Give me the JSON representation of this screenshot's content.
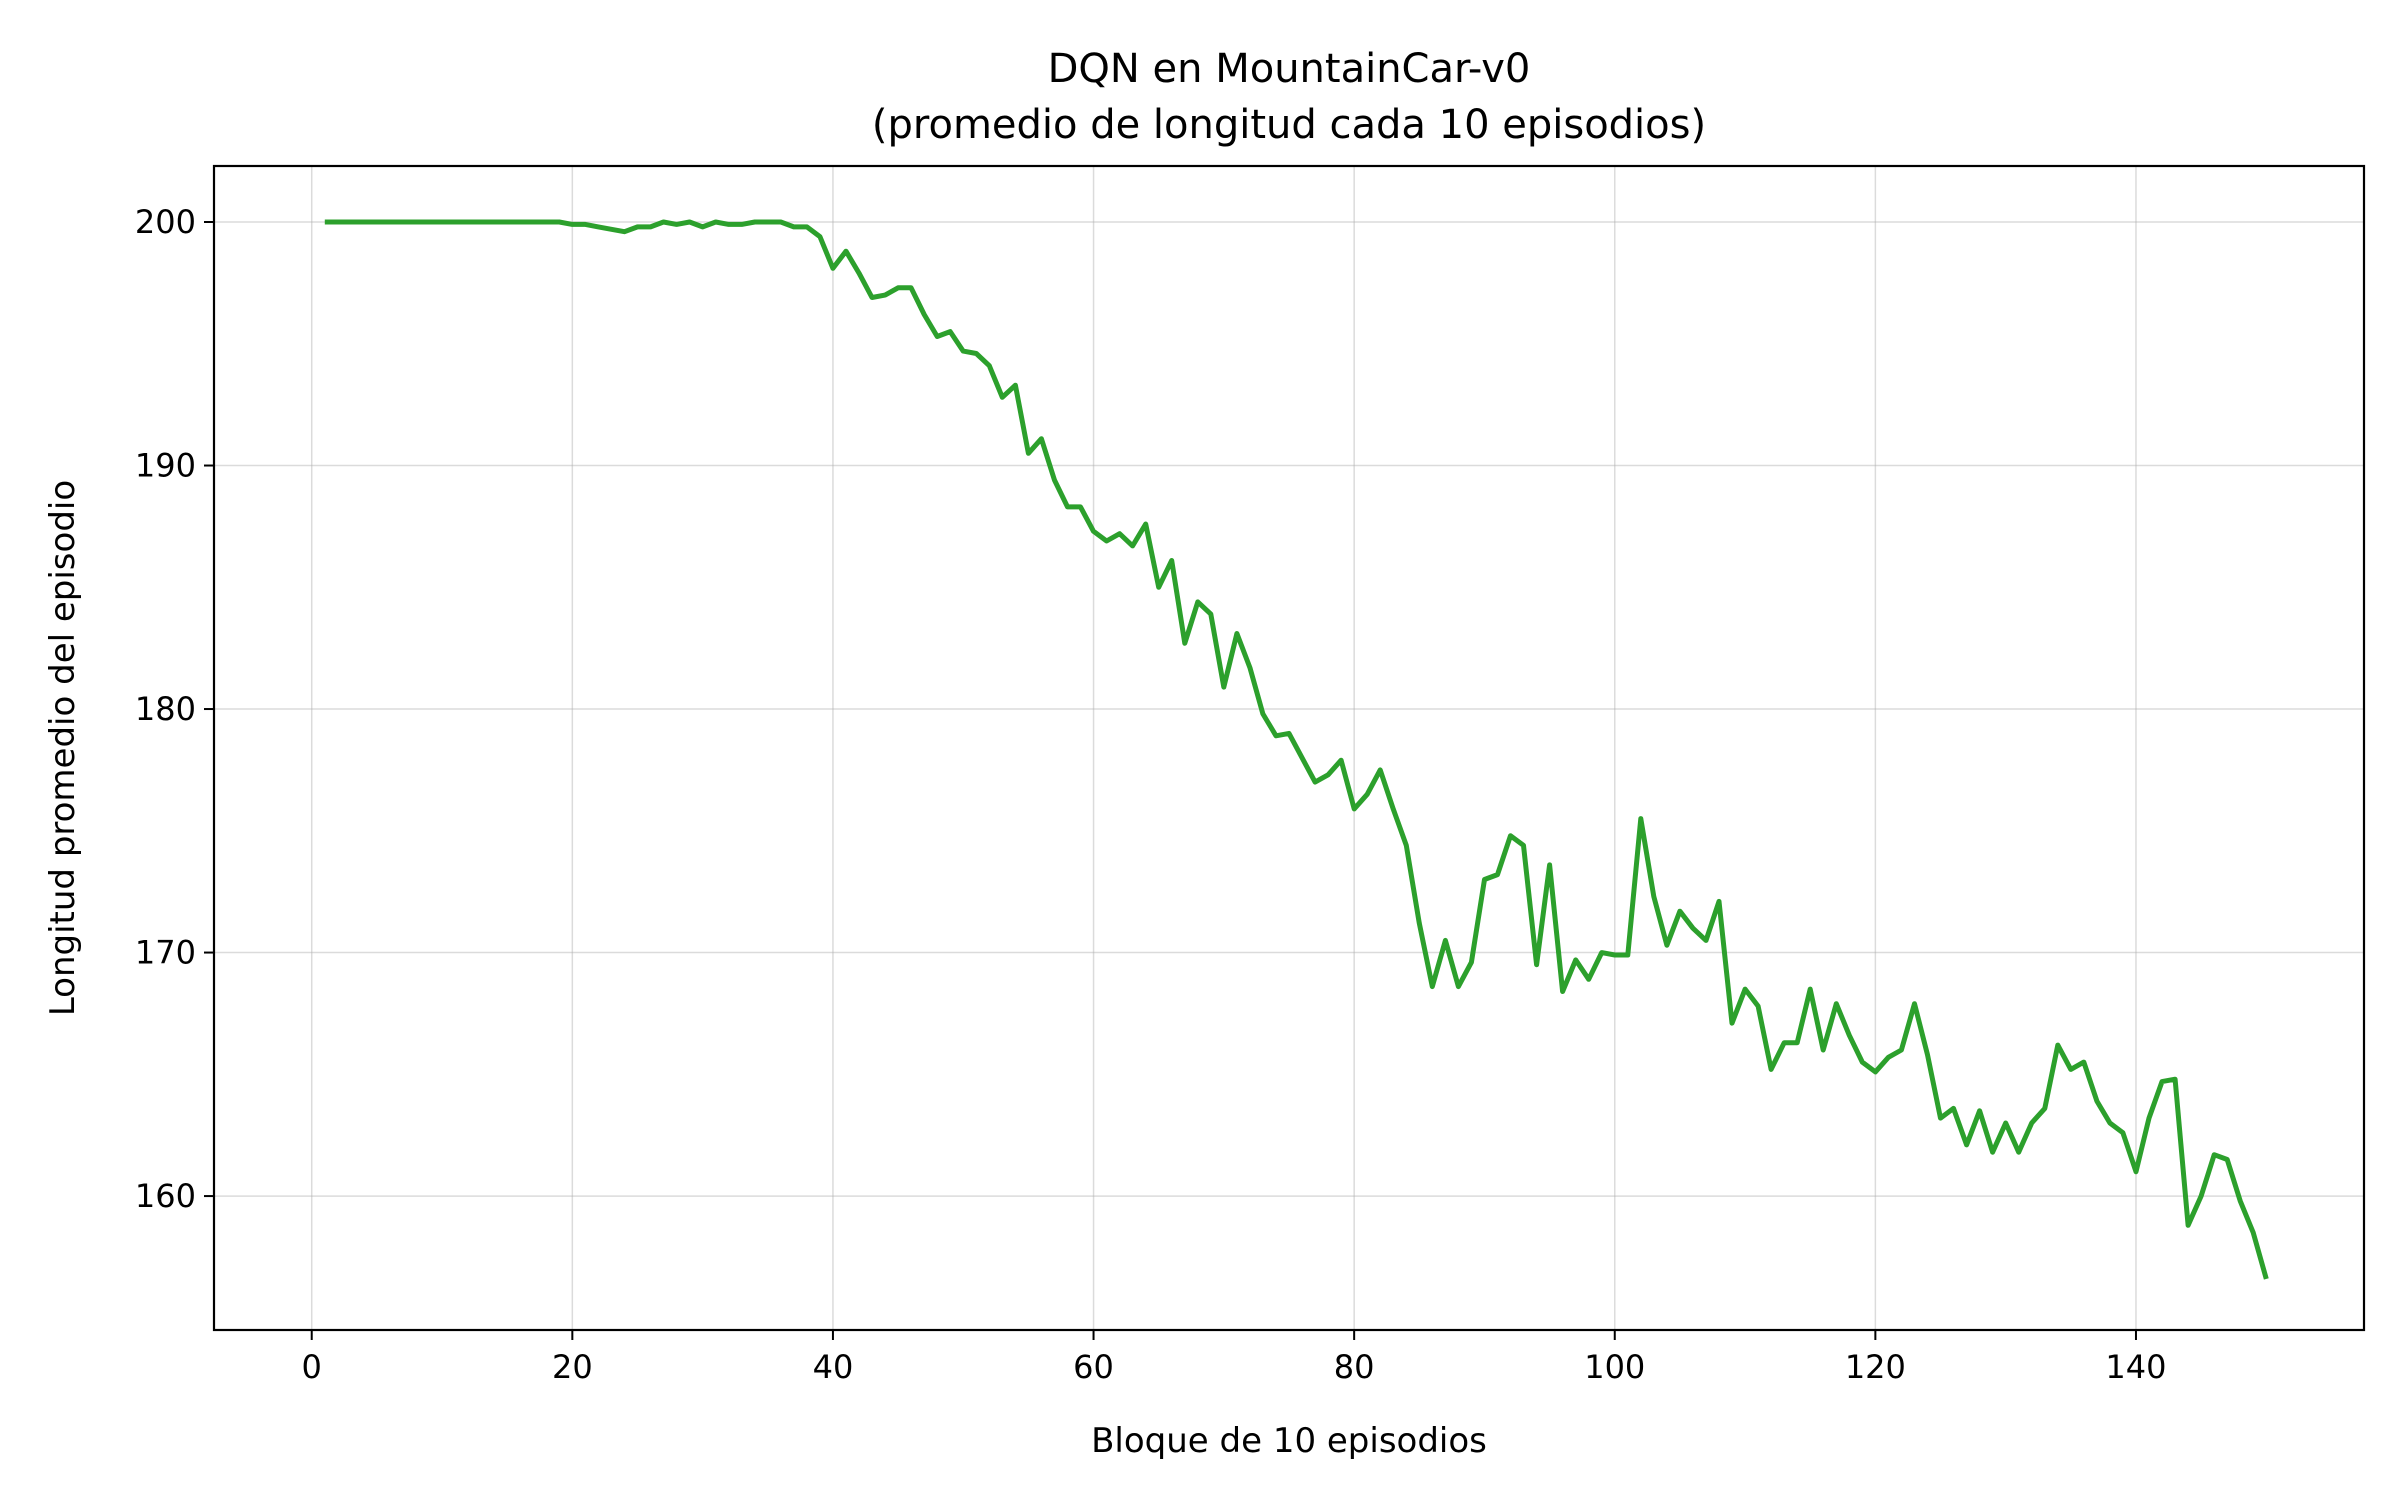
{
  "chart_data": {
    "type": "line",
    "title_line1": "DQN en MountainCar-v0",
    "title_line2": "(promedio de longitud cada 10 episodios)",
    "xlabel": "Bloque de 10 episodios",
    "ylabel": "Longitud promedio del episodio",
    "xlim": [
      -7.5,
      157.5
    ],
    "ylim": [
      154.5,
      202.3
    ],
    "xticks": [
      0,
      20,
      40,
      60,
      80,
      100,
      120,
      140
    ],
    "yticks": [
      160,
      170,
      180,
      190,
      200
    ],
    "grid": true,
    "line_color": "#2ca02c",
    "series": [
      {
        "x": [
          1,
          2,
          3,
          4,
          5,
          6,
          7,
          8,
          9,
          10,
          11,
          12,
          13,
          14,
          15,
          16,
          17,
          18,
          19,
          20,
          21,
          22,
          23,
          24,
          25,
          26,
          27,
          28,
          29,
          30,
          31,
          32,
          33,
          34,
          35,
          36,
          37,
          38,
          39,
          40,
          41,
          42,
          43,
          44,
          45,
          46,
          47,
          48,
          49,
          50,
          51,
          52,
          53,
          54,
          55,
          56,
          57,
          58,
          59,
          60,
          61,
          62,
          63,
          64,
          65,
          66,
          67,
          68,
          69,
          70,
          71,
          72,
          73,
          74,
          75,
          76,
          77,
          78,
          79,
          80,
          81,
          82,
          83,
          84,
          85,
          86,
          87,
          88,
          89,
          90,
          91,
          92,
          93,
          94,
          95,
          96,
          97,
          98,
          99,
          100,
          101,
          102,
          103,
          104,
          105,
          106,
          107,
          108,
          109,
          110,
          111,
          112,
          113,
          114,
          115,
          116,
          117,
          118,
          119,
          120,
          121,
          122,
          123,
          124,
          125,
          126,
          127,
          128,
          129,
          130,
          131,
          132,
          133,
          134,
          135,
          136,
          137,
          138,
          139,
          140,
          141,
          142,
          143,
          144,
          145,
          146,
          147,
          148,
          149,
          150
        ],
        "values": [
          200,
          200,
          200,
          200,
          200,
          200,
          200,
          200,
          200,
          200,
          200,
          200,
          200,
          200,
          200,
          200,
          200,
          200,
          200,
          199.9,
          199.9,
          199.8,
          199.7,
          199.6,
          199.8,
          199.8,
          200,
          199.9,
          200,
          199.8,
          200,
          199.9,
          199.9,
          200,
          200,
          200,
          199.8,
          199.8,
          199.4,
          198.1,
          198.8,
          197.9,
          196.9,
          197,
          197.3,
          197.3,
          196.2,
          195.3,
          195.5,
          194.7,
          194.6,
          194.1,
          192.8,
          193.3,
          190.5,
          191.1,
          189.4,
          188.3,
          188.3,
          187.3,
          186.9,
          187.2,
          186.7,
          187.6,
          185,
          186.1,
          182.7,
          184.4,
          183.9,
          180.9,
          183.1,
          181.7,
          179.8,
          178.9,
          179,
          178,
          177,
          177.3,
          177.9,
          175.9,
          176.5,
          177.5,
          175.9,
          174.4,
          171.2,
          168.6,
          170.5,
          168.6,
          169.6,
          173,
          173.2,
          174.8,
          174.4,
          169.5,
          173.6,
          168.4,
          169.7,
          168.9,
          170,
          169.9,
          169.9,
          175.5,
          172.3,
          170.3,
          171.7,
          171,
          170.5,
          172.1,
          167.1,
          168.5,
          167.8,
          165.2,
          166.3,
          166.3,
          168.5,
          166,
          167.9,
          166.6,
          165.5,
          165.1,
          165.7,
          166,
          167.9,
          165.8,
          163.2,
          163.6,
          162.1,
          163.5,
          161.8,
          163,
          161.8,
          163,
          163.6,
          166.2,
          165.2,
          165.5,
          163.9,
          163,
          162.6,
          161,
          163.2,
          164.7,
          164.8,
          158.8,
          160,
          161.7,
          161.5,
          159.8,
          158.5,
          156.6
        ]
      }
    ]
  }
}
